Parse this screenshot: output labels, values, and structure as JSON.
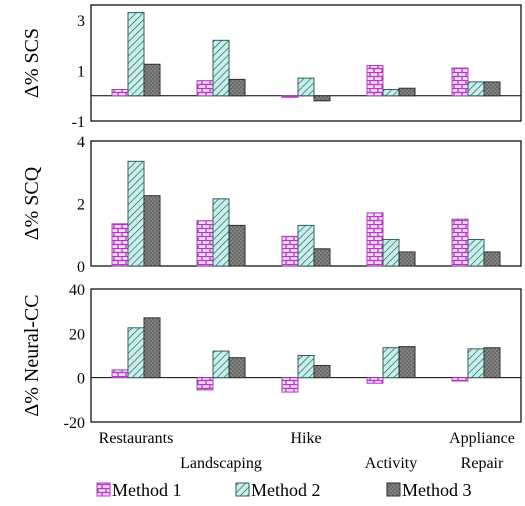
{
  "chart_data": [
    {
      "type": "bar",
      "ylabel": "Δ% SCS",
      "ylim": [
        -1,
        3.6
      ],
      "yticks": [
        3,
        1,
        -1
      ],
      "yticklabels": [
        "3",
        "1",
        "-1"
      ],
      "categories": [
        "Restaurants",
        "Landscaping",
        "Hike",
        "Activity",
        "Appliance Repair"
      ],
      "series": [
        {
          "name": "Method 1",
          "values": [
            0.25,
            0.6,
            -0.05,
            1.2,
            1.1
          ]
        },
        {
          "name": "Method 2",
          "values": [
            3.3,
            2.2,
            0.7,
            0.25,
            0.55
          ]
        },
        {
          "name": "Method 3",
          "values": [
            1.25,
            0.65,
            -0.2,
            0.3,
            0.55
          ]
        }
      ]
    },
    {
      "type": "bar",
      "ylabel": "Δ% SCQ",
      "ylim": [
        0,
        4
      ],
      "yticks": [
        4,
        2,
        0
      ],
      "yticklabels": [
        "4",
        "2",
        "0"
      ],
      "categories": [
        "Restaurants",
        "Landscaping",
        "Hike",
        "Activity",
        "Appliance Repair"
      ],
      "series": [
        {
          "name": "Method 1",
          "values": [
            1.35,
            1.45,
            0.95,
            1.7,
            1.5
          ]
        },
        {
          "name": "Method 2",
          "values": [
            3.35,
            2.15,
            1.3,
            0.85,
            0.85
          ]
        },
        {
          "name": "Method 3",
          "values": [
            2.25,
            1.3,
            0.55,
            0.45,
            0.45
          ]
        }
      ]
    },
    {
      "type": "bar",
      "ylabel": "Δ% Neural-CC",
      "ylim": [
        -20,
        40
      ],
      "yticks": [
        40,
        20,
        0,
        -20
      ],
      "yticklabels": [
        "40",
        "20",
        "0",
        "-20"
      ],
      "categories": [
        "Restaurants",
        "Landscaping",
        "Hike",
        "Activity",
        "Appliance Repair"
      ],
      "series": [
        {
          "name": "Method 1",
          "values": [
            3.5,
            -5.5,
            -6.5,
            -2.5,
            -1.5
          ]
        },
        {
          "name": "Method 2",
          "values": [
            22.5,
            12.0,
            10.0,
            13.5,
            13.0
          ]
        },
        {
          "name": "Method 3",
          "values": [
            27.0,
            9.0,
            5.5,
            14.0,
            13.5
          ]
        }
      ]
    }
  ],
  "category_labels": [
    {
      "line1": "Restaurants",
      "line2": ""
    },
    {
      "line1": "",
      "line2": "Landscaping"
    },
    {
      "line1": "Hike",
      "line2": ""
    },
    {
      "line1": "",
      "line2": "Activity"
    },
    {
      "line1": "Appliance",
      "line2": "Repair"
    }
  ],
  "legend": [
    {
      "name": "Method 1",
      "style": "brick"
    },
    {
      "name": "Method 2",
      "style": "hatch"
    },
    {
      "name": "Method 3",
      "style": "dots"
    }
  ],
  "colors": {
    "method1_fill": "#e6b3f0",
    "method1_line": "#b03cc0",
    "method2_fill": "#b7ebe6",
    "method2_line": "#2e5f5c",
    "method3_fill": "#6e6e6e",
    "frame": "#000000"
  }
}
